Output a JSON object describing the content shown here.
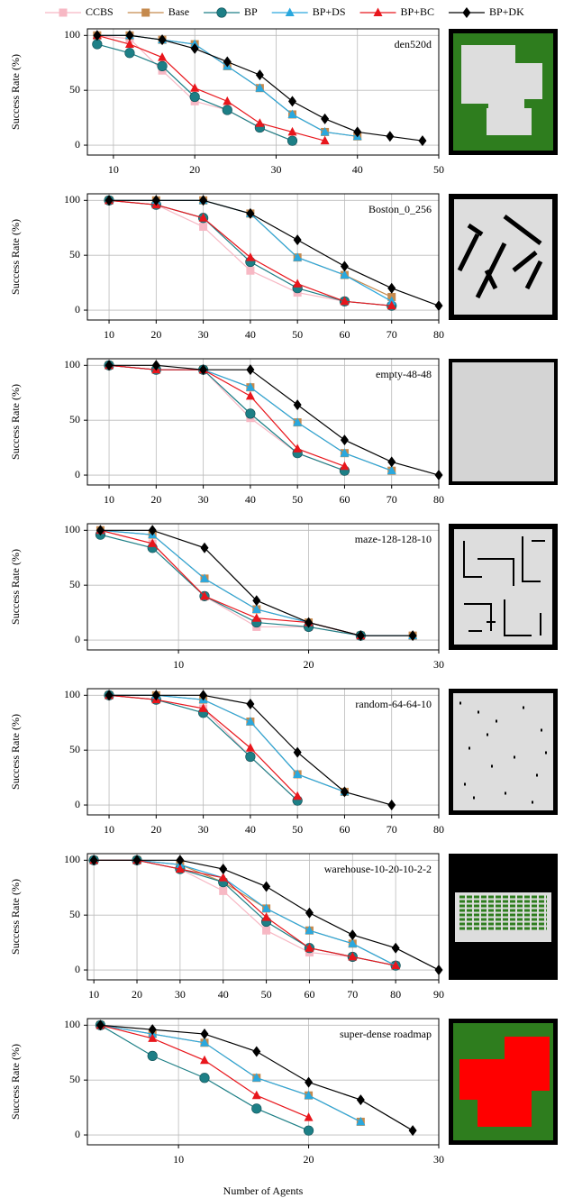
{
  "chart_data": [
    {
      "type": "line",
      "title": "den520d",
      "ylabel": "Success Rate (%)",
      "ylim": [
        -9,
        106
      ],
      "yticks": [
        0,
        50,
        100
      ],
      "xlim": [
        6.8,
        50
      ],
      "xticks": [
        10,
        20,
        30,
        40,
        50
      ],
      "grid": true,
      "x": [
        8,
        12,
        16,
        20,
        24,
        28,
        32,
        36,
        40,
        44,
        48
      ],
      "series": [
        {
          "name": "CCBS",
          "color": "#f7b8c4",
          "marker": "square",
          "values": [
            100,
            97,
            68,
            40,
            32,
            16,
            4,
            null,
            null,
            null,
            null
          ]
        },
        {
          "name": "Base",
          "color": "#c58a4e",
          "marker": "square",
          "values": [
            100,
            100,
            96,
            92,
            72,
            52,
            28,
            12,
            8,
            null,
            null
          ]
        },
        {
          "name": "BP",
          "color": "#1d7f86",
          "marker": "circle",
          "values": [
            92,
            84,
            72,
            44,
            32,
            16,
            4,
            null,
            null,
            null,
            null
          ]
        },
        {
          "name": "BP+DS",
          "color": "#2aa8de",
          "marker": "triangle",
          "values": [
            100,
            100,
            96,
            92,
            72,
            52,
            28,
            12,
            8,
            null,
            null
          ]
        },
        {
          "name": "BP+BC",
          "color": "#e8161c",
          "marker": "triangle",
          "values": [
            100,
            92,
            80,
            52,
            40,
            20,
            12,
            4,
            null,
            null,
            null
          ]
        },
        {
          "name": "BP+DK",
          "color": "#000000",
          "marker": "diamond",
          "values": [
            100,
            100,
            96,
            88,
            76,
            64,
            40,
            24,
            12,
            8,
            4
          ]
        }
      ]
    },
    {
      "type": "line",
      "title": "Boston_0_256",
      "ylabel": "Success Rate (%)",
      "ylim": [
        -9,
        106
      ],
      "yticks": [
        0,
        50,
        100
      ],
      "xlim": [
        5.4,
        80
      ],
      "xticks": [
        10,
        20,
        30,
        40,
        50,
        60,
        70,
        80
      ],
      "grid": true,
      "x": [
        10,
        20,
        30,
        40,
        50,
        60,
        70,
        80
      ],
      "series": [
        {
          "values": [
            100,
            96,
            76,
            36,
            16,
            8,
            4,
            null
          ]
        },
        {
          "values": [
            100,
            100,
            100,
            88,
            48,
            32,
            12,
            null
          ]
        },
        {
          "values": [
            100,
            96,
            84,
            44,
            20,
            8,
            4,
            null
          ]
        },
        {
          "values": [
            100,
            100,
            100,
            88,
            48,
            32,
            8,
            null
          ]
        },
        {
          "values": [
            100,
            96,
            84,
            48,
            24,
            8,
            4,
            null
          ]
        },
        {
          "values": [
            100,
            100,
            100,
            88,
            64,
            40,
            20,
            4
          ]
        }
      ]
    },
    {
      "type": "line",
      "title": "empty-48-48",
      "ylabel": "Success Rate (%)",
      "ylim": [
        -9,
        106
      ],
      "yticks": [
        0,
        50,
        100
      ],
      "xlim": [
        5.4,
        80
      ],
      "xticks": [
        10,
        20,
        30,
        40,
        50,
        60,
        70,
        80
      ],
      "grid": true,
      "x": [
        10,
        20,
        30,
        40,
        50,
        60,
        70,
        80
      ],
      "series": [
        {
          "values": [
            100,
            96,
            96,
            52,
            20,
            4,
            null,
            null
          ]
        },
        {
          "values": [
            100,
            96,
            96,
            80,
            48,
            20,
            4,
            null
          ]
        },
        {
          "values": [
            100,
            96,
            96,
            56,
            20,
            4,
            null,
            null
          ]
        },
        {
          "values": [
            100,
            96,
            96,
            80,
            48,
            20,
            4,
            null
          ]
        },
        {
          "values": [
            100,
            96,
            96,
            72,
            24,
            8,
            null,
            null
          ]
        },
        {
          "values": [
            100,
            100,
            96,
            96,
            64,
            32,
            12,
            0
          ]
        }
      ]
    },
    {
      "type": "line",
      "title": "maze-128-128-10",
      "ylabel": "Success Rate (%)",
      "ylim": [
        -9,
        106
      ],
      "yticks": [
        0,
        50,
        100
      ],
      "xlim": [
        3,
        30
      ],
      "xticks": [
        10,
        20,
        30
      ],
      "grid": true,
      "x": [
        4,
        8,
        12,
        16,
        20,
        24,
        28
      ],
      "series": [
        {
          "values": [
            100,
            88,
            40,
            12,
            12,
            4,
            4
          ]
        },
        {
          "values": [
            100,
            96,
            56,
            28,
            16,
            4,
            4
          ]
        },
        {
          "values": [
            96,
            84,
            40,
            16,
            12,
            4,
            null
          ]
        },
        {
          "values": [
            100,
            96,
            56,
            28,
            16,
            4,
            4
          ]
        },
        {
          "values": [
            100,
            88,
            40,
            20,
            16,
            4,
            null
          ]
        },
        {
          "values": [
            100,
            100,
            84,
            36,
            16,
            4,
            4
          ]
        }
      ]
    },
    {
      "type": "line",
      "title": "random-64-64-10",
      "ylabel": "Success Rate (%)",
      "ylim": [
        -9,
        106
      ],
      "yticks": [
        0,
        50,
        100
      ],
      "xlim": [
        5.4,
        80
      ],
      "xticks": [
        10,
        20,
        30,
        40,
        50,
        60,
        70,
        80
      ],
      "grid": true,
      "x": [
        10,
        20,
        30,
        40,
        50,
        60,
        70
      ],
      "series": [
        {
          "values": [
            100,
            96,
            88,
            44,
            4,
            null,
            null
          ]
        },
        {
          "values": [
            100,
            100,
            96,
            76,
            28,
            12,
            null
          ]
        },
        {
          "values": [
            100,
            96,
            84,
            44,
            4,
            null,
            null
          ]
        },
        {
          "values": [
            100,
            100,
            96,
            76,
            28,
            12,
            null
          ]
        },
        {
          "values": [
            100,
            96,
            88,
            52,
            8,
            null,
            null
          ]
        },
        {
          "values": [
            100,
            100,
            100,
            92,
            48,
            12,
            0
          ]
        }
      ]
    },
    {
      "type": "line",
      "title": "warehouse-10-20-10-2-2",
      "ylabel": "Success Rate (%)",
      "ylim": [
        -9,
        106
      ],
      "yticks": [
        0,
        50,
        100
      ],
      "xlim": [
        8.5,
        90
      ],
      "xticks": [
        10,
        20,
        30,
        40,
        50,
        60,
        70,
        80,
        90
      ],
      "grid": true,
      "x": [
        10,
        20,
        30,
        40,
        50,
        60,
        70,
        80,
        90
      ],
      "series": [
        {
          "values": [
            100,
            100,
            92,
            72,
            36,
            16,
            12,
            4,
            null
          ]
        },
        {
          "values": [
            100,
            100,
            96,
            80,
            56,
            36,
            24,
            4,
            null
          ]
        },
        {
          "values": [
            100,
            100,
            92,
            80,
            44,
            20,
            12,
            4,
            null
          ]
        },
        {
          "values": [
            100,
            100,
            96,
            84,
            56,
            36,
            24,
            4,
            null
          ]
        },
        {
          "values": [
            100,
            100,
            92,
            84,
            48,
            20,
            12,
            4,
            null
          ]
        },
        {
          "values": [
            100,
            100,
            100,
            92,
            76,
            52,
            32,
            20,
            0
          ]
        }
      ]
    },
    {
      "type": "line",
      "title": "super-dense roadmap",
      "ylabel": "Success Rate (%)",
      "xlabel": "Number of Agents",
      "ylim": [
        -9,
        106
      ],
      "yticks": [
        0,
        50,
        100
      ],
      "xlim": [
        3,
        30
      ],
      "xticks": [
        10,
        20,
        30
      ],
      "grid": true,
      "x": [
        4,
        8,
        12,
        16,
        20,
        24,
        28
      ],
      "series": [
        {
          "values": [
            100,
            null,
            null,
            null,
            null,
            null,
            null
          ]
        },
        {
          "values": [
            100,
            92,
            84,
            52,
            36,
            12,
            null
          ]
        },
        {
          "values": [
            100,
            72,
            52,
            24,
            4,
            null,
            null
          ]
        },
        {
          "values": [
            100,
            92,
            84,
            52,
            36,
            12,
            null
          ]
        },
        {
          "values": [
            100,
            88,
            68,
            36,
            16,
            null,
            null
          ]
        },
        {
          "values": [
            100,
            96,
            92,
            76,
            48,
            32,
            4
          ]
        }
      ]
    }
  ]
}
